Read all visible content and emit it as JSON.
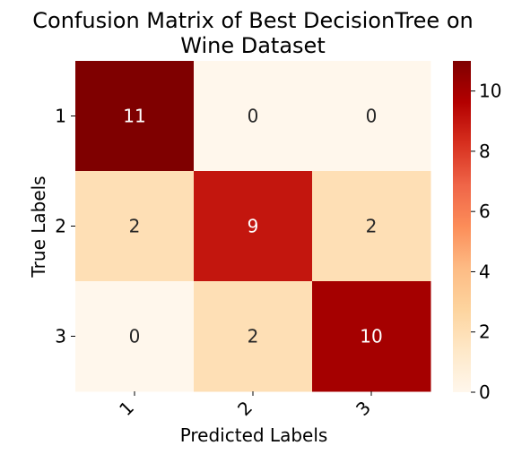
{
  "chart_data": {
    "type": "heatmap",
    "title_lines": [
      "Confusion Matrix of Best DecisionTree on",
      "Wine Dataset"
    ],
    "xlabel": "Predicted Labels",
    "ylabel": "True Labels",
    "x_categories": [
      "1",
      "2",
      "3"
    ],
    "y_categories": [
      "1",
      "2",
      "3"
    ],
    "values": [
      [
        11,
        0,
        0
      ],
      [
        2,
        9,
        2
      ],
      [
        0,
        2,
        10
      ]
    ],
    "colormap": "OrRd",
    "value_range": [
      0,
      11
    ],
    "colorbar_ticks": [
      "0",
      "2",
      "4",
      "6",
      "8",
      "10"
    ],
    "colorbar_tick_values": [
      0,
      2,
      4,
      6,
      8,
      10
    ],
    "annot_colors": {
      "light_cell": "#262626",
      "dark_cell": "#ffffff"
    }
  }
}
